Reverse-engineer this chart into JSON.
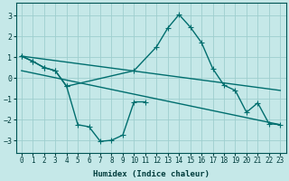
{
  "xlabel": "Humidex (Indice chaleur)",
  "xlim": [
    -0.5,
    23.5
  ],
  "ylim": [
    -3.6,
    3.6
  ],
  "yticks": [
    -3,
    -2,
    -1,
    0,
    1,
    2,
    3
  ],
  "xticks": [
    0,
    1,
    2,
    3,
    4,
    5,
    6,
    7,
    8,
    9,
    10,
    11,
    12,
    13,
    14,
    15,
    16,
    17,
    18,
    19,
    20,
    21,
    22,
    23
  ],
  "bg_color": "#c5e8e8",
  "grid_color": "#9ecece",
  "line_color": "#006e6e",
  "curve1_x": [
    0,
    1,
    2,
    3,
    4,
    5,
    6,
    7,
    8,
    9,
    10,
    11
  ],
  "curve1_y": [
    1.05,
    0.8,
    0.5,
    0.35,
    -0.4,
    -2.25,
    -2.35,
    -3.05,
    -3.0,
    -2.75,
    -1.15,
    -1.15
  ],
  "curve2_x": [
    0,
    1,
    2,
    3,
    4,
    10,
    12,
    13,
    14,
    15,
    16,
    17,
    18,
    19,
    20,
    21,
    22,
    23
  ],
  "curve2_y": [
    1.05,
    0.8,
    0.5,
    0.35,
    -0.4,
    0.35,
    1.5,
    2.4,
    3.05,
    2.45,
    1.7,
    0.45,
    -0.35,
    -0.6,
    -1.65,
    -1.2,
    -2.2,
    -2.25
  ],
  "trend1_x": [
    0,
    23
  ],
  "trend1_y": [
    1.05,
    -0.6
  ],
  "trend2_x": [
    0,
    23
  ],
  "trend2_y": [
    0.35,
    -2.25
  ],
  "linewidth": 1.0,
  "marker_size": 2.5
}
